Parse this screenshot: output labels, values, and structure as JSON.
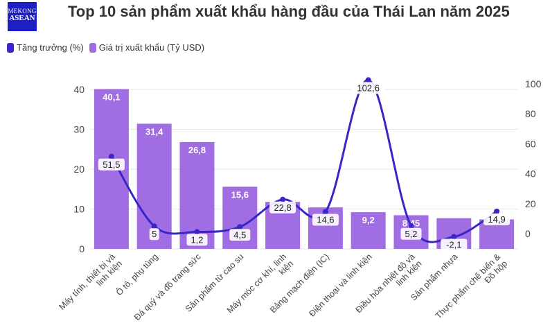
{
  "logo_text": [
    "MEKONG",
    "ASEAN"
  ],
  "colors": {
    "bar": "#a06ee2",
    "line": "#3a25c8",
    "grid": "#e6e6e6"
  },
  "chart_data": {
    "type": "bar+line",
    "title": "Top 10 sản phẩm xuất khẩu hàng đầu của Thái Lan năm 2025",
    "categories": [
      "Máy tính, thiết bị và linh kiện",
      "Ô tô, phụ tùng",
      "Đá quý và đồ trang sức",
      "Sản phẩm từ cao su",
      "Máy móc cơ khí, linh kiện",
      "Bảng mạch điện (IC)",
      "Điện thoại và linh kiện",
      "Điều hòa nhiệt độ và linh kiện",
      "Sản phẩm nhựa",
      "Thực phẩm chế biến & Đồ hộp"
    ],
    "series": [
      {
        "name": "Tăng trưởng (%)",
        "type": "line",
        "axis": "right",
        "values": [
          51.5,
          5,
          1.2,
          4.5,
          22.8,
          14.6,
          102.6,
          5.2,
          -2.1,
          14.9
        ],
        "labels": [
          "51,5",
          "5",
          "1,2",
          "4,5",
          "22,8",
          "14,6",
          "102,6",
          "5,2",
          "-2,1",
          "14,9"
        ]
      },
      {
        "name": "Giá trị xuất khẩu (Tỷ USD)",
        "type": "bar",
        "axis": "left",
        "values": [
          40.1,
          31.4,
          26.8,
          15.6,
          11.8,
          10.4,
          9.2,
          8.45,
          7.7,
          7.4
        ],
        "labels": [
          "40,1",
          "31,4",
          "26,8",
          "15,6",
          "",
          "",
          "9,2",
          "8,45",
          "",
          ""
        ]
      }
    ],
    "left_axis": {
      "range": [
        0,
        40
      ],
      "ticks": [
        "0",
        "10",
        "20",
        "30",
        "40"
      ]
    },
    "right_axis": {
      "range": [
        0,
        100
      ],
      "ticks": [
        "0",
        "20",
        "40",
        "60",
        "80",
        "100"
      ]
    },
    "grid": true,
    "legend": "top-left"
  }
}
